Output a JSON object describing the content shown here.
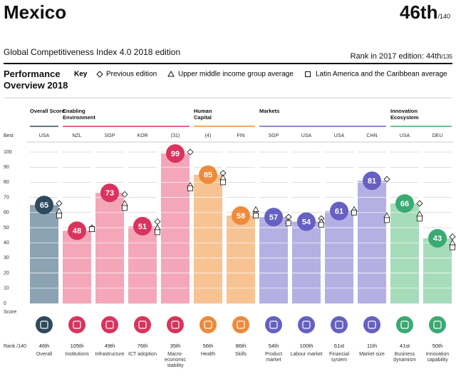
{
  "chart_data": {
    "type": "bar",
    "title": "Mexico",
    "rank": "46th",
    "rank_total": "/140",
    "subtitle": "Global Competitiveness Index 4.0 2018 edition",
    "previous_rank": "Rank in 2017 edition: 44th",
    "previous_rank_total": "/135",
    "section_title": "Performance Overview 2018",
    "key_label": "Key",
    "best_label": "Best",
    "rank_label": "Rank /140",
    "groups": [
      {
        "name": "Overall Score",
        "columns": 1,
        "color": "#2f4a5c",
        "bar_color": "#8ba3b2"
      },
      {
        "name": "Enabling Environment",
        "columns": 4,
        "color": "#d9335e",
        "bar_color": "#f4a7b9"
      },
      {
        "name": "Human Capital",
        "columns": 2,
        "color": "#ee8a3a",
        "bar_color": "#f7c393"
      },
      {
        "name": "Markets",
        "columns": 4,
        "color": "#6660c2",
        "bar_color": "#b4b0e3"
      },
      {
        "name": "Innovation Ecosystem",
        "columns": 2,
        "color": "#3aaa73",
        "bar_color": "#a6dcba"
      }
    ],
    "categories": [
      "Overall",
      "Institutions",
      "Infrastructure",
      "ICT adoption",
      "Macro-economic stability",
      "Health",
      "Skills",
      "Product market",
      "Labour market",
      "Financial system",
      "Market size",
      "Business dynamism",
      "Innovation capability"
    ],
    "best": [
      "USA",
      "NZL",
      "SGP",
      "KOR",
      "(31)",
      "(4)",
      "FIN",
      "SGP",
      "USA",
      "USA",
      "CHN",
      "USA",
      "DEU"
    ],
    "ranks": [
      "46th",
      "105th",
      "49th",
      "76th",
      "35th",
      "56th",
      "86th",
      "54th",
      "100th",
      "61st",
      "11th",
      "41st",
      "50th"
    ],
    "series": [
      {
        "name": "Score",
        "values": [
          65,
          48,
          73,
          51,
          99,
          85,
          58,
          57,
          54,
          61,
          81,
          66,
          43
        ]
      },
      {
        "name": "Previous edition",
        "marker": "diamond",
        "values": [
          66,
          50,
          72,
          54,
          100,
          86,
          59,
          57,
          56,
          61,
          82,
          66,
          44
        ]
      },
      {
        "name": "Upper middle income group average",
        "marker": "triangle",
        "values": [
          61,
          49,
          66,
          50,
          78,
          83,
          62,
          54,
          54,
          62,
          58,
          59,
          40
        ]
      },
      {
        "name": "Latin America and the Caribbean average",
        "marker": "square",
        "values": [
          58,
          49,
          63,
          47,
          76,
          80,
          58,
          53,
          52,
          60,
          55,
          56,
          37
        ]
      }
    ],
    "ylim": [
      0,
      100
    ],
    "yticks": [
      0,
      10,
      20,
      30,
      40,
      50,
      60,
      70,
      80,
      90,
      100
    ],
    "grid": true
  }
}
